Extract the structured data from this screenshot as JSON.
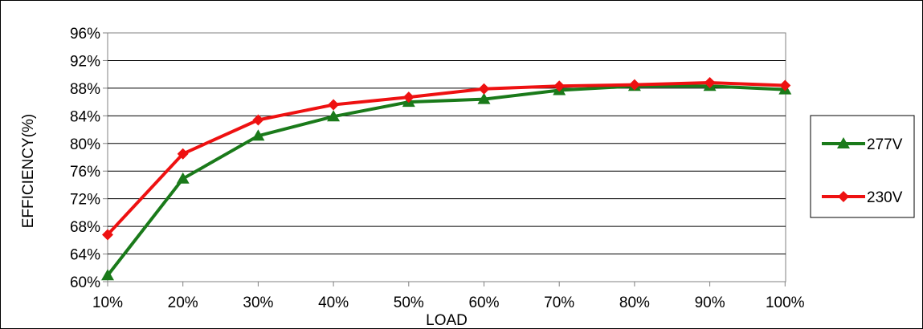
{
  "chart_data": {
    "type": "line",
    "title": "",
    "xlabel": "LOAD",
    "ylabel": "EFFICIENCY(%)",
    "categories": [
      "10%",
      "20%",
      "30%",
      "40%",
      "50%",
      "60%",
      "70%",
      "80%",
      "90%",
      "100%"
    ],
    "x": [
      10,
      20,
      30,
      40,
      50,
      60,
      70,
      80,
      90,
      100
    ],
    "ylim": [
      60,
      96
    ],
    "yticks": [
      60,
      64,
      68,
      72,
      76,
      80,
      84,
      88,
      92,
      96
    ],
    "ytick_labels": [
      "60%",
      "64%",
      "68%",
      "72%",
      "76%",
      "80%",
      "84%",
      "88%",
      "92%",
      "96%"
    ],
    "grid": "horizontal",
    "legend_position": "right",
    "series": [
      {
        "name": "277V",
        "color": "#1a7a1a",
        "marker": "triangle",
        "values": [
          60.9,
          74.9,
          81.1,
          83.9,
          86.0,
          86.4,
          87.7,
          88.3,
          88.3,
          87.8
        ]
      },
      {
        "name": "230V",
        "color": "#ee1111",
        "marker": "diamond",
        "values": [
          66.8,
          78.5,
          83.4,
          85.6,
          86.7,
          87.9,
          88.3,
          88.5,
          88.8,
          88.4
        ]
      }
    ]
  }
}
